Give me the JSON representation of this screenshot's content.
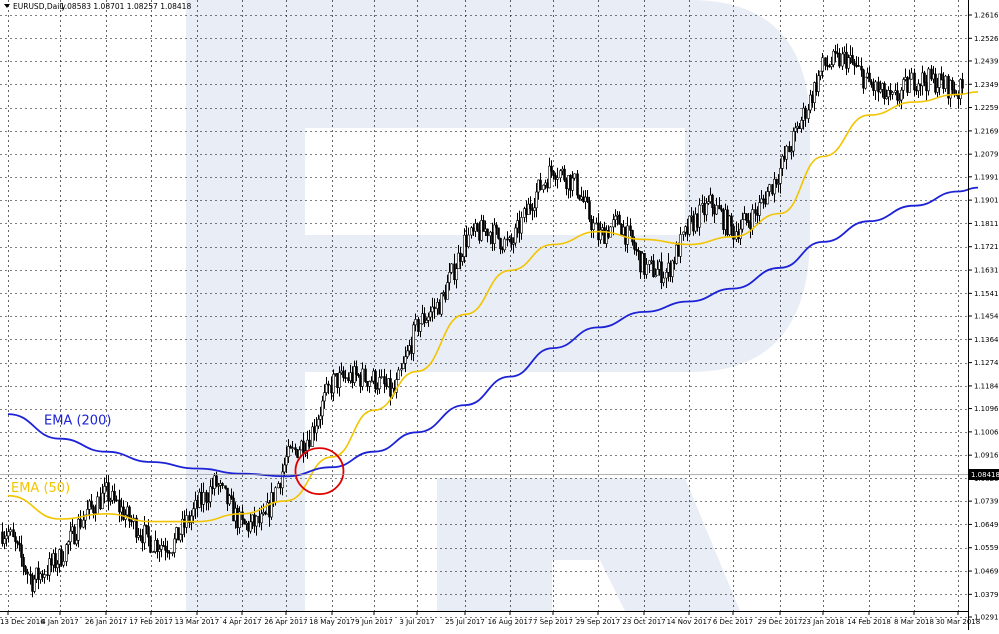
{
  "header": {
    "symbol": "EURUSD,Daily",
    "ohlc": "1.08583 1.08701 1.08257 1.08418"
  },
  "colors": {
    "candle": "#000000",
    "ema50": "#f2c500",
    "ema200": "#1c22d6",
    "marker": "#e00000",
    "grid": "#000000",
    "watermark": "#e9edf5"
  },
  "chart_data": {
    "type": "candlestick",
    "y_axis": {
      "ticks": [
        "1.26165",
        "1.25265",
        "1.24390",
        "1.23490",
        "1.22590",
        "1.21690",
        "1.20790",
        "1.19915",
        "1.19015",
        "1.18115",
        "1.17215",
        "1.16315",
        "1.15415",
        "1.14540",
        "1.13640",
        "1.12740",
        "1.11840",
        "1.10965",
        "1.10065",
        "1.09165",
        "1.08265",
        "1.07390",
        "1.06490",
        "1.05590",
        "1.04690",
        "1.03790",
        "1.02915"
      ],
      "range": [
        1.0235,
        1.2662
      ],
      "current_price": "1.08418"
    },
    "x_axis": {
      "ticks": [
        "13 Dec 2016",
        "4 Jan 2017",
        "26 Jan 2017",
        "17 Feb 2017",
        "13 Mar 2017",
        "4 Apr 2017",
        "26 Apr 2017",
        "18 May 2017",
        "9 Jun 2017",
        "3 Jul 2017",
        "25 Jul 2017",
        "16 Aug 2017",
        "7 Sep 2017",
        "29 Sep 2017",
        "23 Oct 2017",
        "14 Nov 2017",
        "6 Dec 2017",
        "29 Dec 2017",
        "23 Jan 2018",
        "14 Feb 2018",
        "8 Mar 2018",
        "30 Mar 2018"
      ]
    },
    "price_path": [
      [
        "13 Dec 2016",
        1.062
      ],
      [
        "23 Dec 2016",
        1.043
      ],
      [
        "4 Jan 2017",
        1.052
      ],
      [
        "15 Jan 2017",
        1.068
      ],
      [
        "26 Jan 2017",
        1.077
      ],
      [
        "6 Feb 2017",
        1.067
      ],
      [
        "17 Feb 2017",
        1.058
      ],
      [
        "28 Feb 2017",
        1.057
      ],
      [
        "13 Mar 2017",
        1.072
      ],
      [
        "22 Mar 2017",
        1.081
      ],
      [
        "4 Apr 2017",
        1.064
      ],
      [
        "15 Apr 2017",
        1.066
      ],
      [
        "26 Apr 2017",
        1.09
      ],
      [
        "7 May 2017",
        1.099
      ],
      [
        "18 May 2017",
        1.12
      ],
      [
        "29 May 2017",
        1.122
      ],
      [
        "9 Jun 2017",
        1.121
      ],
      [
        "20 Jun 2017",
        1.115
      ],
      [
        "3 Jul 2017",
        1.142
      ],
      [
        "14 Jul 2017",
        1.151
      ],
      [
        "25 Jul 2017",
        1.175
      ],
      [
        "5 Aug 2017",
        1.179
      ],
      [
        "16 Aug 2017",
        1.172
      ],
      [
        "27 Aug 2017",
        1.19
      ],
      [
        "7 Sep 2017",
        1.203
      ],
      [
        "18 Sep 2017",
        1.196
      ],
      [
        "29 Sep 2017",
        1.176
      ],
      [
        "10 Oct 2017",
        1.182
      ],
      [
        "23 Oct 2017",
        1.164
      ],
      [
        "3 Nov 2017",
        1.162
      ],
      [
        "14 Nov 2017",
        1.18
      ],
      [
        "25 Nov 2017",
        1.189
      ],
      [
        "6 Dec 2017",
        1.178
      ],
      [
        "17 Dec 2017",
        1.185
      ],
      [
        "29 Dec 2017",
        1.202
      ],
      [
        "11 Jan 2018",
        1.222
      ],
      [
        "23 Jan 2018",
        1.242
      ],
      [
        "3 Feb 2018",
        1.245
      ],
      [
        "14 Feb 2018",
        1.235
      ],
      [
        "25 Feb 2018",
        1.228
      ],
      [
        "8 Mar 2018",
        1.237
      ],
      [
        "19 Mar 2018",
        1.236
      ],
      [
        "30 Mar 2018",
        1.232
      ],
      [
        "9 Apr 2018",
        1.236
      ]
    ],
    "series": [
      {
        "name": "EMA (50)",
        "color": "#f2c500",
        "points": [
          [
            "13 Dec 2016",
            1.076
          ],
          [
            "4 Jan 2017",
            1.067
          ],
          [
            "26 Jan 2017",
            1.069
          ],
          [
            "17 Feb 2017",
            1.066
          ],
          [
            "13 Mar 2017",
            1.066
          ],
          [
            "4 Apr 2017",
            1.069
          ],
          [
            "26 Apr 2017",
            1.074
          ],
          [
            "18 May 2017",
            1.091
          ],
          [
            "9 Jun 2017",
            1.109
          ],
          [
            "3 Jul 2017",
            1.124
          ],
          [
            "25 Jul 2017",
            1.146
          ],
          [
            "16 Aug 2017",
            1.163
          ],
          [
            "7 Sep 2017",
            1.173
          ],
          [
            "29 Sep 2017",
            1.178
          ],
          [
            "23 Oct 2017",
            1.175
          ],
          [
            "14 Nov 2017",
            1.173
          ],
          [
            "6 Dec 2017",
            1.176
          ],
          [
            "29 Dec 2017",
            1.185
          ],
          [
            "23 Jan 2018",
            1.207
          ],
          [
            "14 Feb 2018",
            1.223
          ],
          [
            "8 Mar 2018",
            1.228
          ],
          [
            "30 Mar 2018",
            1.231
          ],
          [
            "9 Apr 2018",
            1.232
          ]
        ]
      },
      {
        "name": "EMA (200)",
        "color": "#1c22d6",
        "points": [
          [
            "13 Dec 2016",
            1.1075
          ],
          [
            "4 Jan 2017",
            1.098
          ],
          [
            "26 Jan 2017",
            1.093
          ],
          [
            "17 Feb 2017",
            1.089
          ],
          [
            "13 Mar 2017",
            1.0865
          ],
          [
            "4 Apr 2017",
            1.0845
          ],
          [
            "26 Apr 2017",
            1.0835
          ],
          [
            "18 May 2017",
            1.087
          ],
          [
            "9 Jun 2017",
            1.093
          ],
          [
            "3 Jul 2017",
            1.1005
          ],
          [
            "25 Jul 2017",
            1.111
          ],
          [
            "16 Aug 2017",
            1.122
          ],
          [
            "7 Sep 2017",
            1.133
          ],
          [
            "29 Sep 2017",
            1.141
          ],
          [
            "23 Oct 2017",
            1.147
          ],
          [
            "14 Nov 2017",
            1.151
          ],
          [
            "6 Dec 2017",
            1.156
          ],
          [
            "29 Dec 2017",
            1.164
          ],
          [
            "23 Jan 2018",
            1.174
          ],
          [
            "14 Feb 2018",
            1.182
          ],
          [
            "8 Mar 2018",
            1.188
          ],
          [
            "30 Mar 2018",
            1.1935
          ],
          [
            "9 Apr 2018",
            1.195
          ]
        ]
      }
    ],
    "annotations": [
      {
        "label": "EMA (200)",
        "color": "#1c22d6",
        "at": [
          "13 Dec 2016",
          1.1035
        ]
      },
      {
        "label": "EMA (50)",
        "color": "#f2c500",
        "at": [
          "13 Dec 2016",
          1.0775
        ]
      },
      {
        "label": "",
        "kind": "circle",
        "color": "#e00000",
        "at": [
          "12 May 2017",
          1.0855
        ]
      }
    ],
    "grid": true
  }
}
